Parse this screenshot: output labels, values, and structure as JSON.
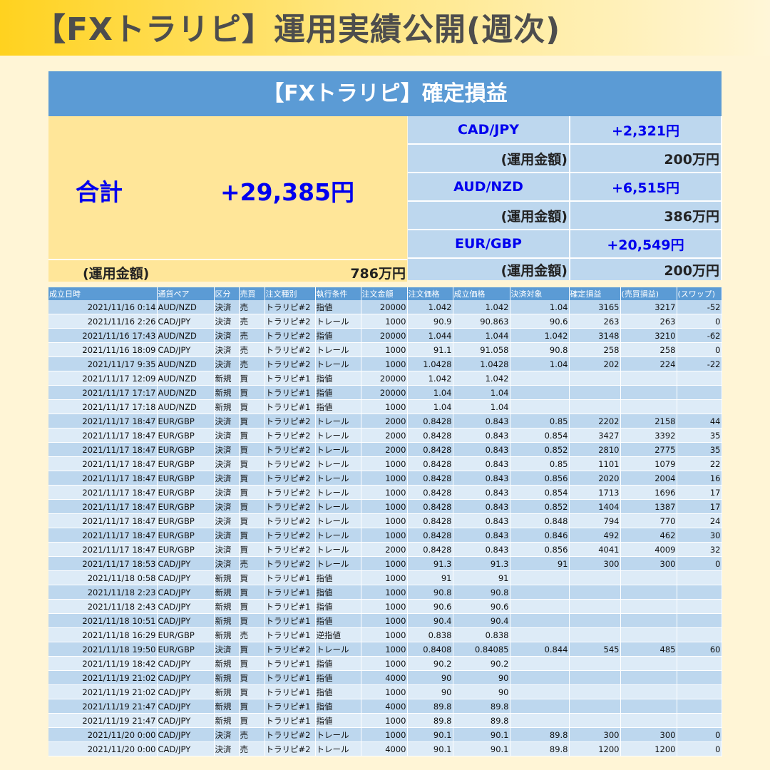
{
  "page": {
    "title": "【FXトラリピ】運用実績公開(週次)"
  },
  "panel": {
    "header": "【FXトラリピ】確定損益",
    "total": {
      "label": "合計",
      "value": "+29,385円",
      "amount_label": "(運用金額)",
      "amount_value": "786万円"
    },
    "pairs": [
      {
        "name": "CAD/JPY",
        "profit": "+2,321円",
        "amount_label": "(運用金額)",
        "amount_value": "200万円"
      },
      {
        "name": "AUD/NZD",
        "profit": "+6,515円",
        "amount_label": "(運用金額)",
        "amount_value": "386万円"
      },
      {
        "name": "EUR/GBP",
        "profit": "+20,549円",
        "amount_label": "(運用金額)",
        "amount_value": "200万円"
      }
    ]
  },
  "trades": {
    "headers": [
      "成立日時",
      "通貨ペア",
      "区分",
      "売買",
      "注文種別",
      "執行条件",
      "注文金額",
      "注文価格",
      "成立価格",
      "決済対象",
      "確定損益",
      "(売買損益)",
      "(スワップ)"
    ],
    "rows": [
      [
        "2021/11/16 0:14",
        "AUD/NZD",
        "決済",
        "売",
        "トラリピ#2",
        "指値",
        "20000",
        "1.042",
        "1.042",
        "1.04",
        "3165",
        "3217",
        "-52"
      ],
      [
        "2021/11/16 2:26",
        "CAD/JPY",
        "決済",
        "売",
        "トラリピ#2",
        "トレール",
        "1000",
        "90.9",
        "90.863",
        "90.6",
        "263",
        "263",
        "0"
      ],
      [
        "2021/11/16 17:43",
        "AUD/NZD",
        "決済",
        "売",
        "トラリピ#2",
        "指値",
        "20000",
        "1.044",
        "1.044",
        "1.042",
        "3148",
        "3210",
        "-62"
      ],
      [
        "2021/11/16 18:09",
        "CAD/JPY",
        "決済",
        "売",
        "トラリピ#2",
        "トレール",
        "1000",
        "91.1",
        "91.058",
        "90.8",
        "258",
        "258",
        "0"
      ],
      [
        "2021/11/17 9:35",
        "AUD/NZD",
        "決済",
        "売",
        "トラリピ#2",
        "トレール",
        "1000",
        "1.0428",
        "1.0428",
        "1.04",
        "202",
        "224",
        "-22"
      ],
      [
        "2021/11/17 12:09",
        "AUD/NZD",
        "新規",
        "買",
        "トラリピ#1",
        "指値",
        "20000",
        "1.042",
        "1.042",
        "",
        "",
        "",
        ""
      ],
      [
        "2021/11/17 17:17",
        "AUD/NZD",
        "新規",
        "買",
        "トラリピ#1",
        "指値",
        "20000",
        "1.04",
        "1.04",
        "",
        "",
        "",
        ""
      ],
      [
        "2021/11/17 17:18",
        "AUD/NZD",
        "新規",
        "買",
        "トラリピ#1",
        "指値",
        "1000",
        "1.04",
        "1.04",
        "",
        "",
        "",
        ""
      ],
      [
        "2021/11/17 18:47",
        "EUR/GBP",
        "決済",
        "買",
        "トラリピ#2",
        "トレール",
        "2000",
        "0.8428",
        "0.843",
        "0.85",
        "2202",
        "2158",
        "44"
      ],
      [
        "2021/11/17 18:47",
        "EUR/GBP",
        "決済",
        "買",
        "トラリピ#2",
        "トレール",
        "2000",
        "0.8428",
        "0.843",
        "0.854",
        "3427",
        "3392",
        "35"
      ],
      [
        "2021/11/17 18:47",
        "EUR/GBP",
        "決済",
        "買",
        "トラリピ#2",
        "トレール",
        "2000",
        "0.8428",
        "0.843",
        "0.852",
        "2810",
        "2775",
        "35"
      ],
      [
        "2021/11/17 18:47",
        "EUR/GBP",
        "決済",
        "買",
        "トラリピ#2",
        "トレール",
        "1000",
        "0.8428",
        "0.843",
        "0.85",
        "1101",
        "1079",
        "22"
      ],
      [
        "2021/11/17 18:47",
        "EUR/GBP",
        "決済",
        "買",
        "トラリピ#2",
        "トレール",
        "1000",
        "0.8428",
        "0.843",
        "0.856",
        "2020",
        "2004",
        "16"
      ],
      [
        "2021/11/17 18:47",
        "EUR/GBP",
        "決済",
        "買",
        "トラリピ#2",
        "トレール",
        "1000",
        "0.8428",
        "0.843",
        "0.854",
        "1713",
        "1696",
        "17"
      ],
      [
        "2021/11/17 18:47",
        "EUR/GBP",
        "決済",
        "買",
        "トラリピ#2",
        "トレール",
        "1000",
        "0.8428",
        "0.843",
        "0.852",
        "1404",
        "1387",
        "17"
      ],
      [
        "2021/11/17 18:47",
        "EUR/GBP",
        "決済",
        "買",
        "トラリピ#2",
        "トレール",
        "1000",
        "0.8428",
        "0.843",
        "0.848",
        "794",
        "770",
        "24"
      ],
      [
        "2021/11/17 18:47",
        "EUR/GBP",
        "決済",
        "買",
        "トラリピ#2",
        "トレール",
        "1000",
        "0.8428",
        "0.843",
        "0.846",
        "492",
        "462",
        "30"
      ],
      [
        "2021/11/17 18:47",
        "EUR/GBP",
        "決済",
        "買",
        "トラリピ#2",
        "トレール",
        "2000",
        "0.8428",
        "0.843",
        "0.856",
        "4041",
        "4009",
        "32"
      ],
      [
        "2021/11/17 18:53",
        "CAD/JPY",
        "決済",
        "売",
        "トラリピ#2",
        "トレール",
        "1000",
        "91.3",
        "91.3",
        "91",
        "300",
        "300",
        "0"
      ],
      [
        "2021/11/18 0:58",
        "CAD/JPY",
        "新規",
        "買",
        "トラリピ#1",
        "指値",
        "1000",
        "91",
        "91",
        "",
        "",
        "",
        ""
      ],
      [
        "2021/11/18 2:23",
        "CAD/JPY",
        "新規",
        "買",
        "トラリピ#1",
        "指値",
        "1000",
        "90.8",
        "90.8",
        "",
        "",
        "",
        ""
      ],
      [
        "2021/11/18 2:43",
        "CAD/JPY",
        "新規",
        "買",
        "トラリピ#1",
        "指値",
        "1000",
        "90.6",
        "90.6",
        "",
        "",
        "",
        ""
      ],
      [
        "2021/11/18 10:51",
        "CAD/JPY",
        "新規",
        "買",
        "トラリピ#1",
        "指値",
        "1000",
        "90.4",
        "90.4",
        "",
        "",
        "",
        ""
      ],
      [
        "2021/11/18 16:29",
        "EUR/GBP",
        "新規",
        "売",
        "トラリピ#1",
        "逆指値",
        "1000",
        "0.838",
        "0.838",
        "",
        "",
        "",
        ""
      ],
      [
        "2021/11/18 19:50",
        "EUR/GBP",
        "決済",
        "買",
        "トラリピ#2",
        "トレール",
        "1000",
        "0.8408",
        "0.84085",
        "0.844",
        "545",
        "485",
        "60"
      ],
      [
        "2021/11/19 18:42",
        "CAD/JPY",
        "新規",
        "買",
        "トラリピ#1",
        "指値",
        "1000",
        "90.2",
        "90.2",
        "",
        "",
        "",
        ""
      ],
      [
        "2021/11/19 21:02",
        "CAD/JPY",
        "新規",
        "買",
        "トラリピ#1",
        "指値",
        "4000",
        "90",
        "90",
        "",
        "",
        "",
        ""
      ],
      [
        "2021/11/19 21:02",
        "CAD/JPY",
        "新規",
        "買",
        "トラリピ#1",
        "指値",
        "1000",
        "90",
        "90",
        "",
        "",
        "",
        ""
      ],
      [
        "2021/11/19 21:47",
        "CAD/JPY",
        "新規",
        "買",
        "トラリピ#1",
        "指値",
        "4000",
        "89.8",
        "89.8",
        "",
        "",
        "",
        ""
      ],
      [
        "2021/11/19 21:47",
        "CAD/JPY",
        "新規",
        "買",
        "トラリピ#1",
        "指値",
        "1000",
        "89.8",
        "89.8",
        "",
        "",
        "",
        ""
      ],
      [
        "2021/11/20 0:00",
        "CAD/JPY",
        "決済",
        "売",
        "トラリピ#2",
        "トレール",
        "1000",
        "90.1",
        "90.1",
        "89.8",
        "300",
        "300",
        "0"
      ],
      [
        "2021/11/20 0:00",
        "CAD/JPY",
        "決済",
        "売",
        "トラリピ#2",
        "トレール",
        "4000",
        "90.1",
        "90.1",
        "89.8",
        "1200",
        "1200",
        "0"
      ]
    ]
  }
}
